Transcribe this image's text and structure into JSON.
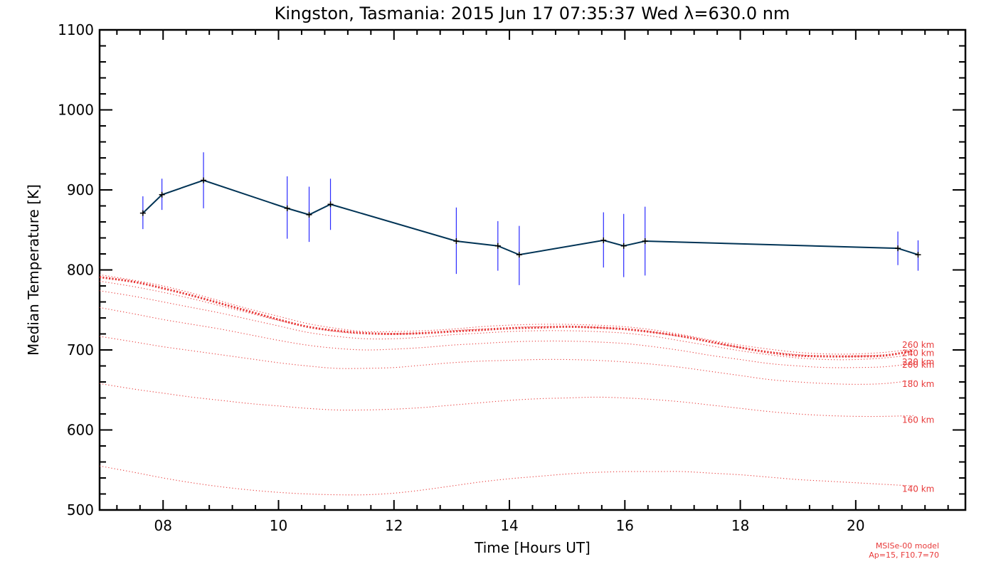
{
  "chart_data": {
    "type": "line",
    "title": "Kingston, Tasmania: 2015 Jun 17 07:35:37 Wed λ=630.0 nm",
    "xlabel": "Time [Hours UT]",
    "ylabel": "Median Temperature [K]",
    "xlim": [
      6.9,
      21.9
    ],
    "ylim": [
      500,
      1100
    ],
    "xticks": [
      8,
      10,
      12,
      14,
      16,
      18,
      20
    ],
    "xtick_labels": [
      "08",
      "10",
      "12",
      "14",
      "16",
      "18",
      "20"
    ],
    "yticks": [
      500,
      600,
      700,
      800,
      900,
      1000,
      1100
    ],
    "ytick_labels": [
      "500",
      "600",
      "700",
      "800",
      "900",
      "1000",
      "1100"
    ],
    "grid": false,
    "colors": {
      "measured": "#003355",
      "error_bars": "#2a2aff",
      "model": "#e83a3a"
    },
    "series": [
      {
        "name": "",
        "style": "line with plus markers and vertical error bars",
        "x": [
          7.65,
          7.98,
          8.7,
          10.15,
          10.53,
          10.9,
          13.08,
          13.8,
          14.17,
          15.63,
          15.98,
          16.35,
          20.73,
          21.08
        ],
        "y": [
          871,
          894,
          912,
          877,
          869,
          882,
          836,
          830,
          819,
          837,
          830,
          836,
          827,
          819
        ],
        "err_low": [
          851,
          875,
          877,
          839,
          835,
          850,
          795,
          799,
          781,
          803,
          791,
          793,
          806,
          799
        ],
        "err_high": [
          892,
          914,
          947,
          917,
          904,
          914,
          878,
          861,
          855,
          872,
          870,
          879,
          848,
          837
        ]
      }
    ],
    "model_curves": {
      "x": [
        6.9,
        7.5,
        8.0,
        8.5,
        9.0,
        9.5,
        10.0,
        10.5,
        11.0,
        11.5,
        12.0,
        12.5,
        13.0,
        13.5,
        14.0,
        14.5,
        15.0,
        15.5,
        16.0,
        16.5,
        17.0,
        17.5,
        18.0,
        18.5,
        19.0,
        19.5,
        20.0,
        20.5,
        21.0
      ],
      "highlighted": [
        {
          "name": "",
          "y": [
            791,
            785,
            777,
            768,
            758,
            748,
            738,
            729,
            724,
            721,
            720,
            721,
            723,
            725,
            727,
            728,
            729,
            728,
            726,
            722,
            717,
            710,
            703,
            697,
            693,
            692,
            692,
            693,
            699
          ]
        }
      ],
      "curves": [
        {
          "name": "140 km",
          "y": [
            555,
            547,
            540,
            534,
            529,
            525,
            522,
            520,
            519,
            519,
            521,
            525,
            530,
            535,
            539,
            542,
            545,
            547,
            548,
            548,
            548,
            546,
            544,
            541,
            538,
            536,
            534,
            532,
            530
          ]
        },
        {
          "name": "160 km",
          "y": [
            658,
            651,
            646,
            641,
            637,
            633,
            630,
            627,
            625,
            625,
            626,
            628,
            631,
            634,
            637,
            639,
            640,
            641,
            640,
            638,
            635,
            631,
            627,
            623,
            620,
            618,
            617,
            617,
            618
          ]
        },
        {
          "name": "180 km",
          "y": [
            717,
            710,
            704,
            699,
            694,
            689,
            684,
            680,
            677,
            677,
            678,
            681,
            684,
            686,
            687,
            688,
            688,
            687,
            685,
            682,
            678,
            673,
            668,
            663,
            660,
            658,
            657,
            658,
            662
          ]
        },
        {
          "name": "200 km",
          "y": [
            753,
            745,
            738,
            732,
            726,
            719,
            712,
            706,
            702,
            700,
            701,
            703,
            706,
            708,
            710,
            711,
            711,
            710,
            708,
            704,
            699,
            693,
            688,
            683,
            680,
            678,
            678,
            679,
            683
          ]
        },
        {
          "name": "220 km",
          "y": [
            774,
            767,
            760,
            753,
            746,
            738,
            730,
            722,
            717,
            714,
            714,
            716,
            719,
            721,
            723,
            724,
            724,
            723,
            721,
            717,
            711,
            705,
            699,
            694,
            690,
            688,
            688,
            690,
            694
          ]
        },
        {
          "name": "240 km",
          "y": [
            786,
            779,
            772,
            764,
            755,
            746,
            737,
            729,
            723,
            720,
            720,
            721,
            724,
            726,
            728,
            729,
            729,
            728,
            726,
            722,
            716,
            709,
            703,
            698,
            694,
            692,
            692,
            694,
            698
          ]
        },
        {
          "name": "260 km",
          "y": [
            794,
            787,
            780,
            771,
            761,
            751,
            742,
            733,
            727,
            723,
            723,
            724,
            726,
            729,
            731,
            732,
            732,
            731,
            729,
            725,
            719,
            712,
            706,
            701,
            697,
            695,
            695,
            697,
            701
          ]
        }
      ]
    },
    "notes": [
      "MSISe-00 model",
      "Ap=15, F10.7=70"
    ]
  }
}
